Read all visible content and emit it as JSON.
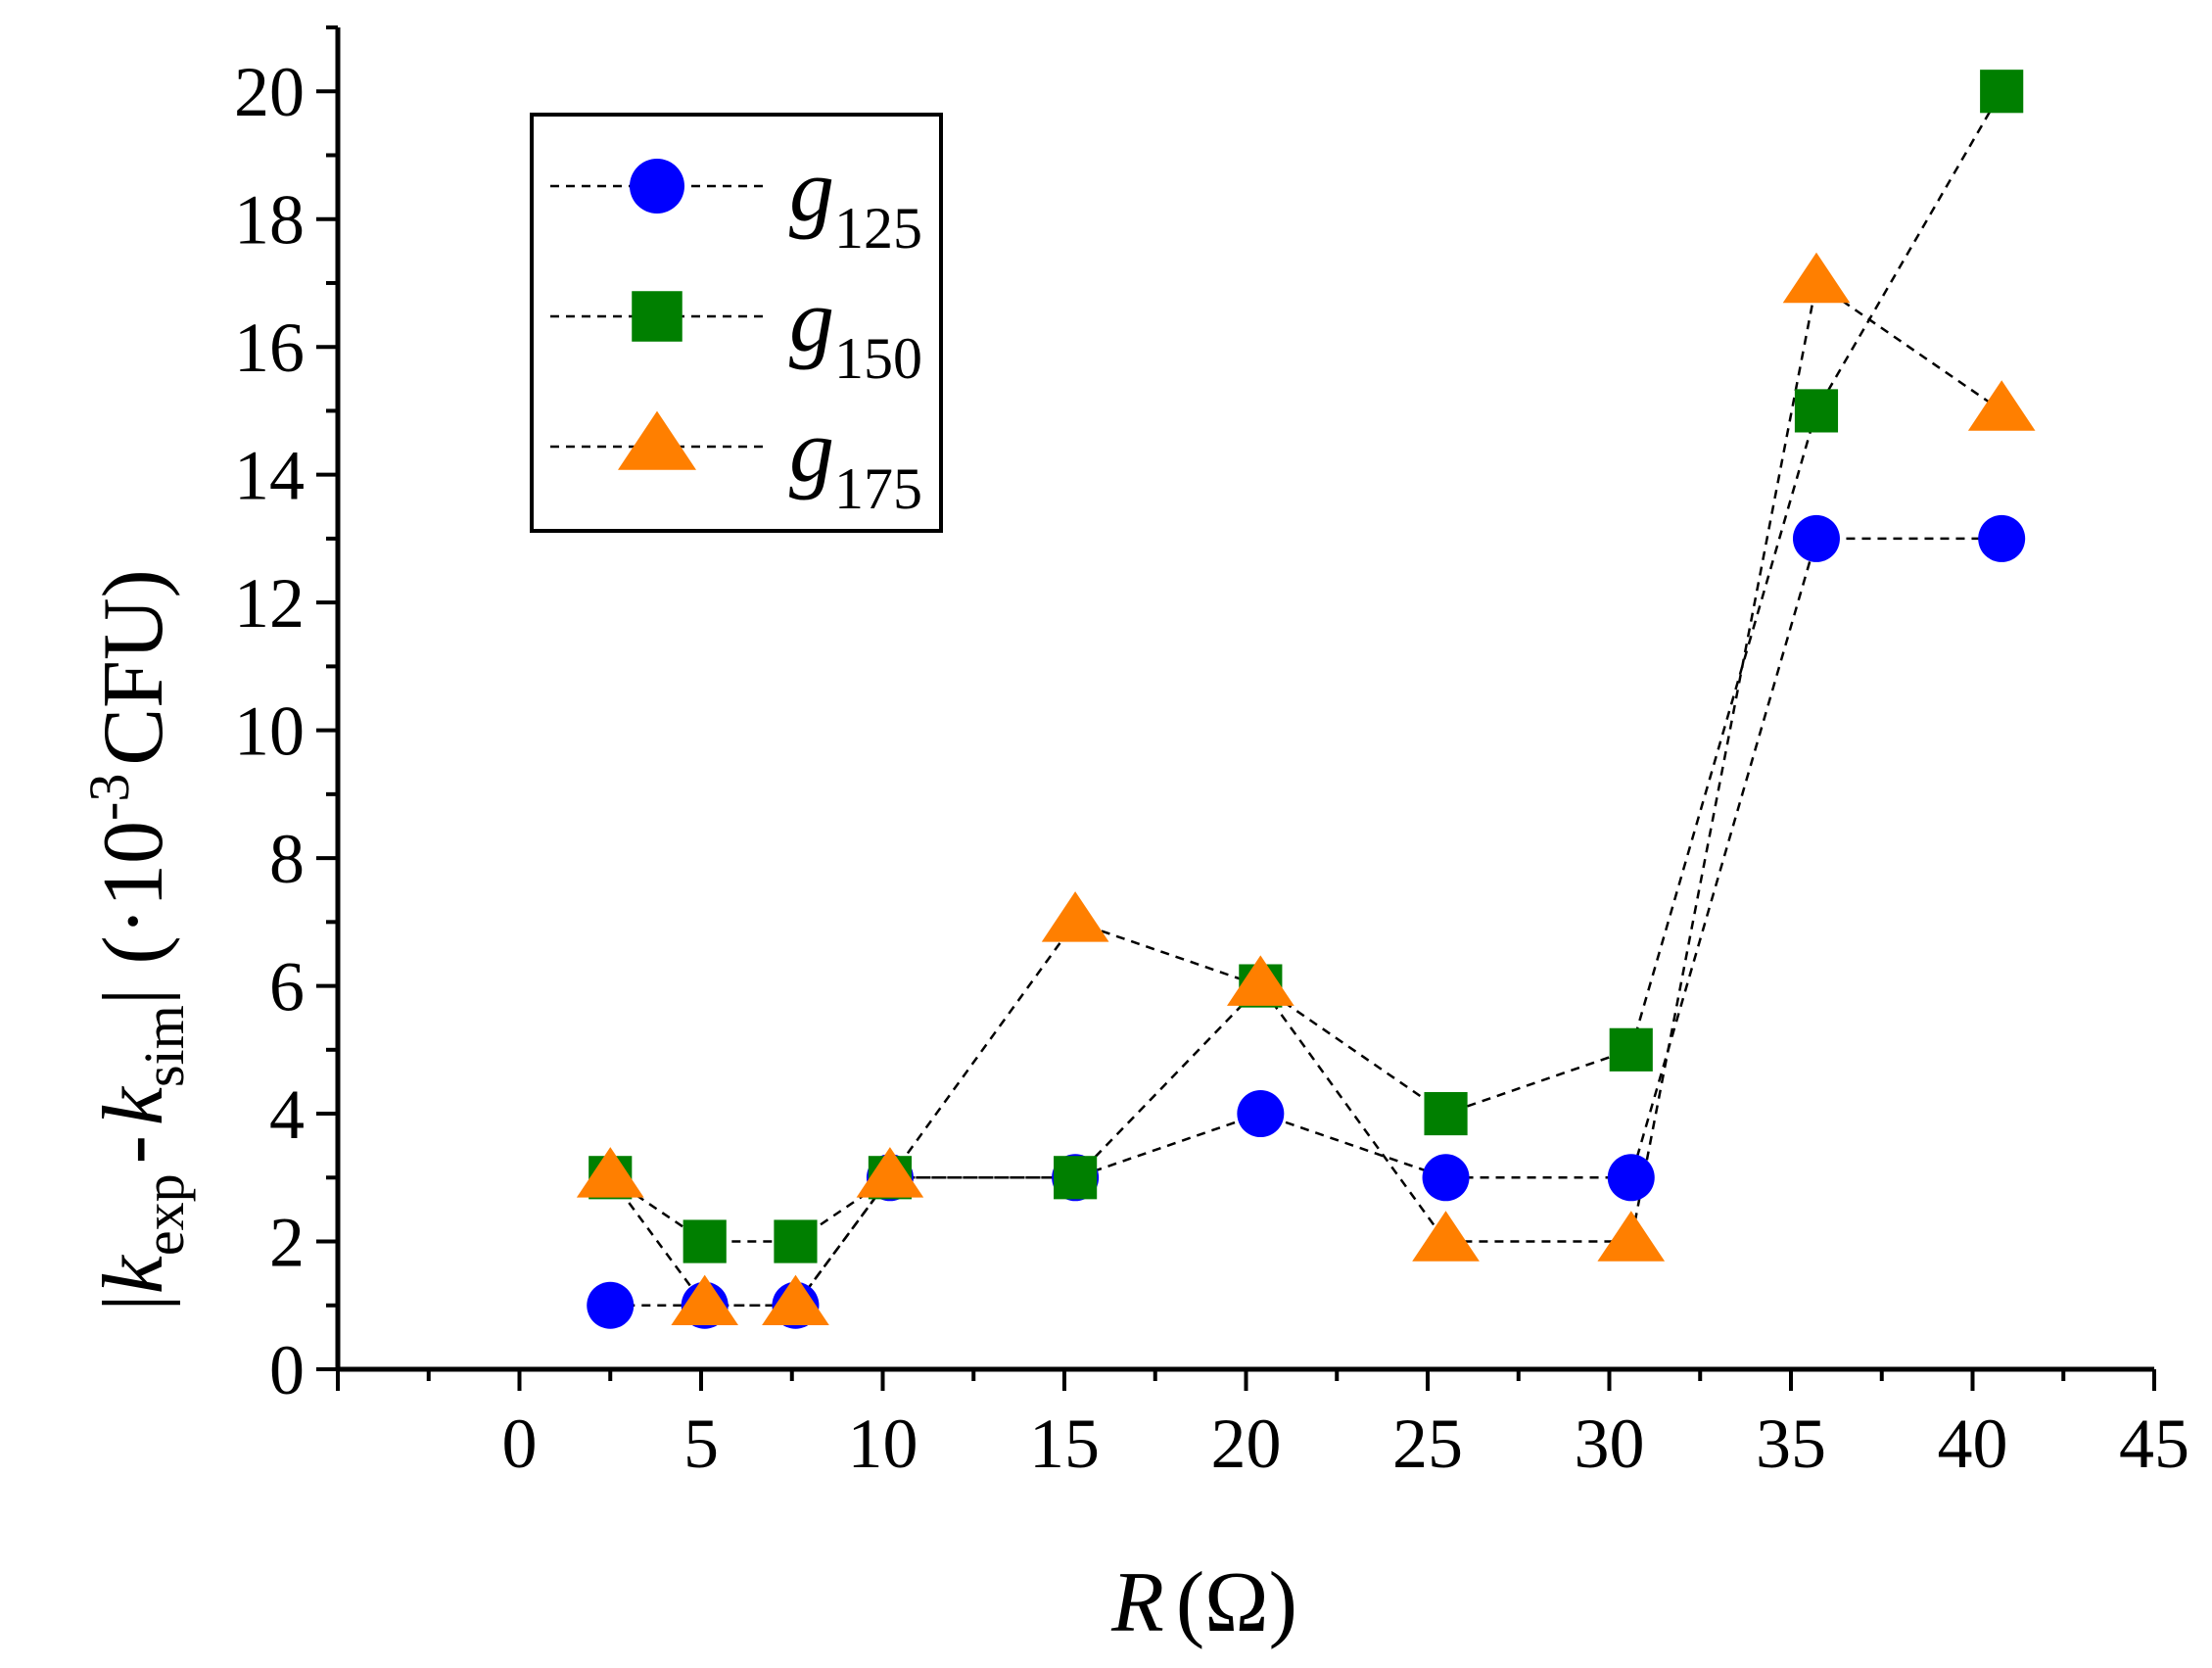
{
  "chart_data": {
    "type": "scatter",
    "xlabel_var": "R",
    "xlabel_unit": "(Ω)",
    "ylabel_parts": {
      "k": "k",
      "exp": "exp",
      "minus": "-",
      "sim": "sim",
      "scale": "(·10",
      "exp3": "-3",
      "unit": "CFU)"
    },
    "xlim": [
      -5,
      45
    ],
    "ylim": [
      0,
      21
    ],
    "xticks": [
      0,
      5,
      10,
      15,
      20,
      25,
      30,
      35,
      40,
      45
    ],
    "yticks": [
      0,
      2,
      4,
      6,
      8,
      10,
      12,
      14,
      16,
      18,
      20
    ],
    "series": [
      {
        "name": "g",
        "sub": "125",
        "marker": "circle",
        "color": "#0000ff",
        "x": [
          2.5,
          5.1,
          7.6,
          10.2,
          15.3,
          20.4,
          25.5,
          30.6,
          35.7,
          40.8
        ],
        "y": [
          1,
          1,
          1,
          3,
          3,
          4,
          3,
          3,
          13,
          13
        ]
      },
      {
        "name": "g",
        "sub": "150",
        "marker": "square",
        "color": "#007f00",
        "x": [
          2.5,
          5.1,
          7.6,
          10.2,
          15.3,
          20.4,
          25.5,
          30.6,
          35.7,
          40.8
        ],
        "y": [
          3,
          2,
          2,
          3,
          3,
          6,
          4,
          5,
          15,
          20
        ]
      },
      {
        "name": "g",
        "sub": "175",
        "marker": "triangle",
        "color": "#ff7f00",
        "x": [
          2.5,
          5.1,
          7.6,
          10.2,
          15.3,
          20.4,
          25.5,
          30.6,
          35.7,
          40.8
        ],
        "y": [
          3,
          1,
          1,
          3,
          7,
          6,
          2,
          2,
          17,
          15
        ]
      }
    ],
    "legend_position": "top-left"
  }
}
